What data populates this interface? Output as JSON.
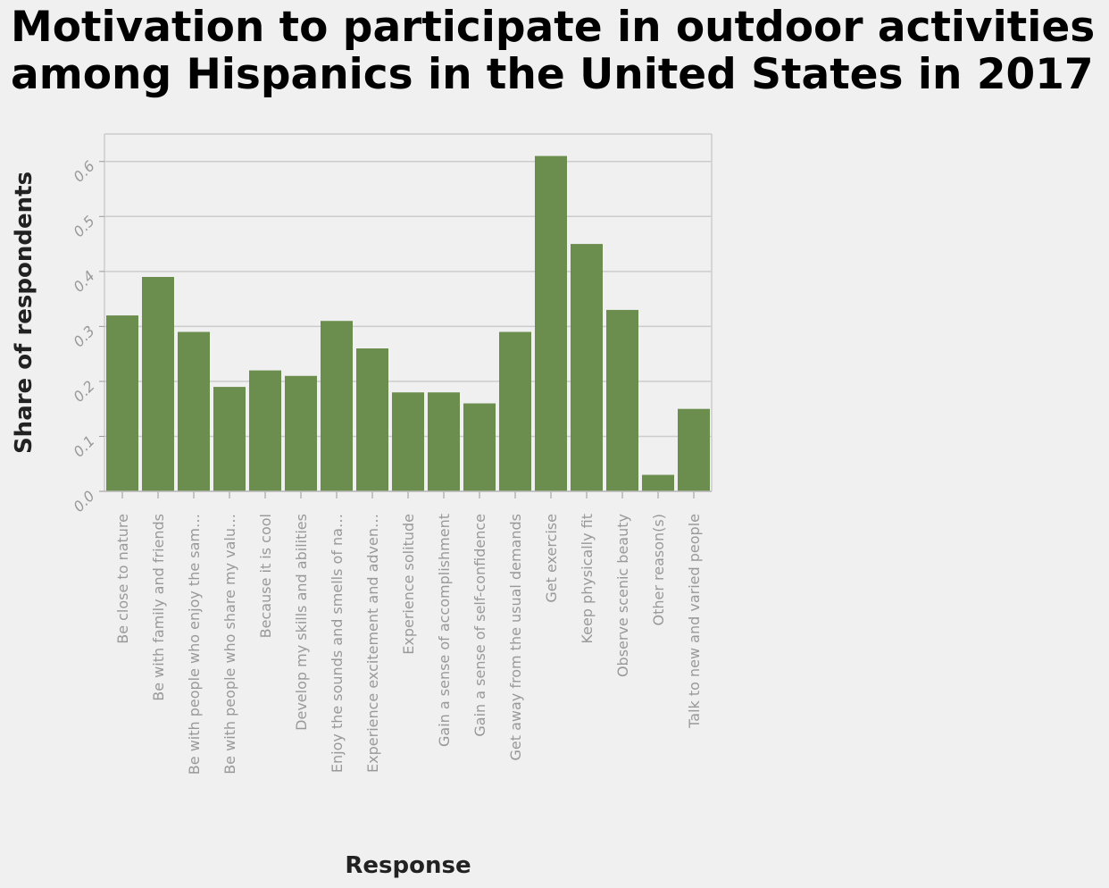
{
  "chart_data": {
    "type": "bar",
    "title": "Motivation to participate in outdoor activities\namong Hispanics in the United States in 2017",
    "xlabel": "Response",
    "ylabel": "Share of respondents",
    "ylim": [
      0,
      0.65
    ],
    "yticks": [
      "0.0",
      "0.1",
      "0.2",
      "0.3",
      "0.4",
      "0.5",
      "0.6"
    ],
    "grid": true,
    "bar_color": "#6b8e4e",
    "categories": [
      "Be close to nature",
      "Be with family and friends",
      "Be with people who enjoy the sam…",
      "Be with people who share my valu…",
      "Because it is cool",
      "Develop my skills and abilities",
      "Enjoy the sounds and smells of na…",
      "Experience excitement and adven…",
      "Experience solitude",
      "Gain a sense of accomplishment",
      "Gain a sense of self-confidence",
      "Get away from the usual demands",
      "Get exercise",
      "Keep physically fit",
      "Observe scenic beauty",
      "Other reason(s)",
      "Talk to new and varied people"
    ],
    "values": [
      0.32,
      0.39,
      0.29,
      0.19,
      0.22,
      0.21,
      0.31,
      0.26,
      0.18,
      0.18,
      0.16,
      0.29,
      0.61,
      0.45,
      0.33,
      0.03,
      0.15
    ]
  }
}
